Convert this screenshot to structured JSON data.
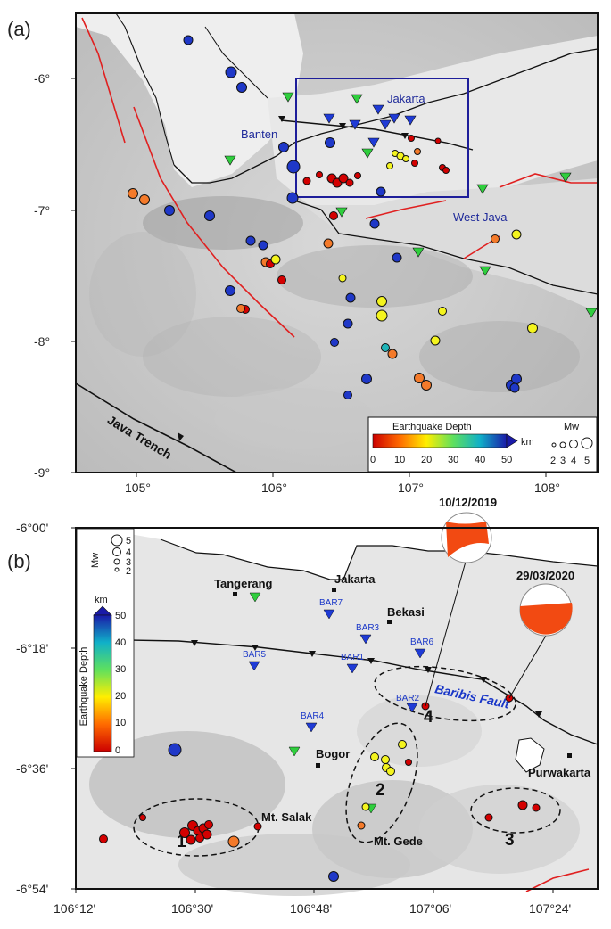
{
  "panel_a": {
    "label": "(a)",
    "lat_ticks": [
      "-6°",
      "-7°",
      "-8°",
      "-9°"
    ],
    "lon_ticks": [
      "105°",
      "106°",
      "107°",
      "108°"
    ],
    "places": {
      "jakarta": "Jakarta",
      "banten": "Banten",
      "west_java": "West Java",
      "trench": "Java Trench"
    },
    "legend": {
      "title": "Earthquake Depth",
      "unit": "km",
      "depth_ticks": [
        "0",
        "10",
        "20",
        "30",
        "40",
        "50"
      ],
      "mw_title": "Mw",
      "mw_ticks": [
        "2",
        "3",
        "4",
        "5"
      ]
    }
  },
  "panel_b": {
    "label": "(b)",
    "lat_ticks": [
      "-6°00'",
      "-6°18'",
      "-6°36'",
      "-6°54'"
    ],
    "lon_ticks": [
      "106°12'",
      "106°30'",
      "106°48'",
      "107°06'",
      "107°24'"
    ],
    "cities": {
      "tangerang": "Tangerang",
      "jakarta": "Jakarta",
      "bekasi": "Bekasi",
      "bogor": "Bogor",
      "purwakarta": "Purwakarta"
    },
    "stations": [
      "BAR1",
      "BAR2",
      "BAR3",
      "BAR4",
      "BAR5",
      "BAR6",
      "BAR7"
    ],
    "volcanoes": {
      "salak": "Mt. Salak",
      "gede": "Mt. Gede"
    },
    "fault": "Baribis Fault",
    "zones": [
      "1",
      "2",
      "3",
      "4"
    ],
    "events": {
      "e1": "10/12/2019",
      "e2": "29/03/2020"
    },
    "legend": {
      "mw_title": "Mw",
      "mw_ticks": [
        "5",
        "4",
        "3",
        "2"
      ],
      "unit": "km",
      "depth_title": "Earthquake Depth",
      "depth_ticks": [
        "50",
        "40",
        "30",
        "20",
        "10",
        "0"
      ]
    }
  },
  "colors": {
    "shallow": "#d40000",
    "orange": "#f47a2a",
    "yellow": "#f4f41e",
    "cyan": "#1fb4b8",
    "blue": "#1f38c8",
    "station": "#1f3bd6",
    "green": "#2fce3d",
    "fault": "#e02020",
    "box": "#1e1e9a"
  }
}
